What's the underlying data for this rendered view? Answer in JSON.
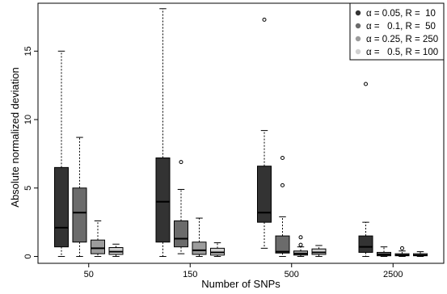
{
  "chart_data": {
    "type": "box",
    "title": "",
    "xlabel": "Number of SNPs",
    "ylabel": "Absolute normalized deviation",
    "categories": [
      "50",
      "150",
      "500",
      "2500"
    ],
    "ylim": [
      -0.5,
      18.5
    ],
    "yticks": [
      0,
      5,
      10,
      15
    ],
    "grid": false,
    "legend_position": "top-right",
    "series": [
      {
        "name": "α = 0.05, R =  10",
        "color": "#333333",
        "boxes": [
          {
            "min": 0.0,
            "q1": 0.7,
            "median": 2.1,
            "q3": 6.5,
            "max": 15.0,
            "outliers": []
          },
          {
            "min": 0.0,
            "q1": 1.05,
            "median": 4.0,
            "q3": 7.2,
            "max": 18.1,
            "outliers": []
          },
          {
            "min": 0.6,
            "q1": 2.5,
            "median": 3.2,
            "q3": 6.6,
            "max": 9.2,
            "outliers": [
              17.3
            ]
          },
          {
            "min": 0.0,
            "q1": 0.3,
            "median": 0.7,
            "q3": 1.5,
            "max": 2.5,
            "outliers": [
              12.6
            ]
          }
        ]
      },
      {
        "name": "α =   0.1, R =  50",
        "color": "#6b6b6b",
        "boxes": [
          {
            "min": 0.0,
            "q1": 1.05,
            "median": 3.2,
            "q3": 5.0,
            "max": 8.7,
            "outliers": []
          },
          {
            "min": 0.2,
            "q1": 0.7,
            "median": 1.3,
            "q3": 2.6,
            "max": 4.9,
            "outliers": [
              6.9
            ]
          },
          {
            "min": 0.0,
            "q1": 0.25,
            "median": 0.35,
            "q3": 1.5,
            "max": 2.9,
            "outliers": [
              5.2,
              7.2
            ]
          },
          {
            "min": 0.0,
            "q1": 0.05,
            "median": 0.15,
            "q3": 0.3,
            "max": 0.7,
            "outliers": []
          }
        ]
      },
      {
        "name": "α = 0.25, R = 250",
        "color": "#9c9c9c",
        "boxes": [
          {
            "min": 0.0,
            "q1": 0.2,
            "median": 0.6,
            "q3": 1.2,
            "max": 2.6,
            "outliers": []
          },
          {
            "min": 0.0,
            "q1": 0.15,
            "median": 0.45,
            "q3": 1.05,
            "max": 2.8,
            "outliers": []
          },
          {
            "min": 0.0,
            "q1": 0.1,
            "median": 0.2,
            "q3": 0.4,
            "max": 0.7,
            "outliers": [
              0.85,
              1.4
            ]
          },
          {
            "min": 0.0,
            "q1": 0.05,
            "median": 0.1,
            "q3": 0.2,
            "max": 0.4,
            "outliers": [
              0.6
            ]
          }
        ]
      },
      {
        "name": "α =   0.5, R = 100",
        "color": "#d0d0d0",
        "boxes": [
          {
            "min": 0.0,
            "q1": 0.15,
            "median": 0.35,
            "q3": 0.65,
            "max": 0.9,
            "outliers": []
          },
          {
            "min": 0.0,
            "q1": 0.1,
            "median": 0.3,
            "q3": 0.6,
            "max": 1.0,
            "outliers": []
          },
          {
            "min": 0.0,
            "q1": 0.15,
            "median": 0.3,
            "q3": 0.55,
            "max": 0.8,
            "outliers": []
          },
          {
            "min": 0.0,
            "q1": 0.05,
            "median": 0.1,
            "q3": 0.2,
            "max": 0.35,
            "outliers": []
          }
        ]
      }
    ]
  }
}
